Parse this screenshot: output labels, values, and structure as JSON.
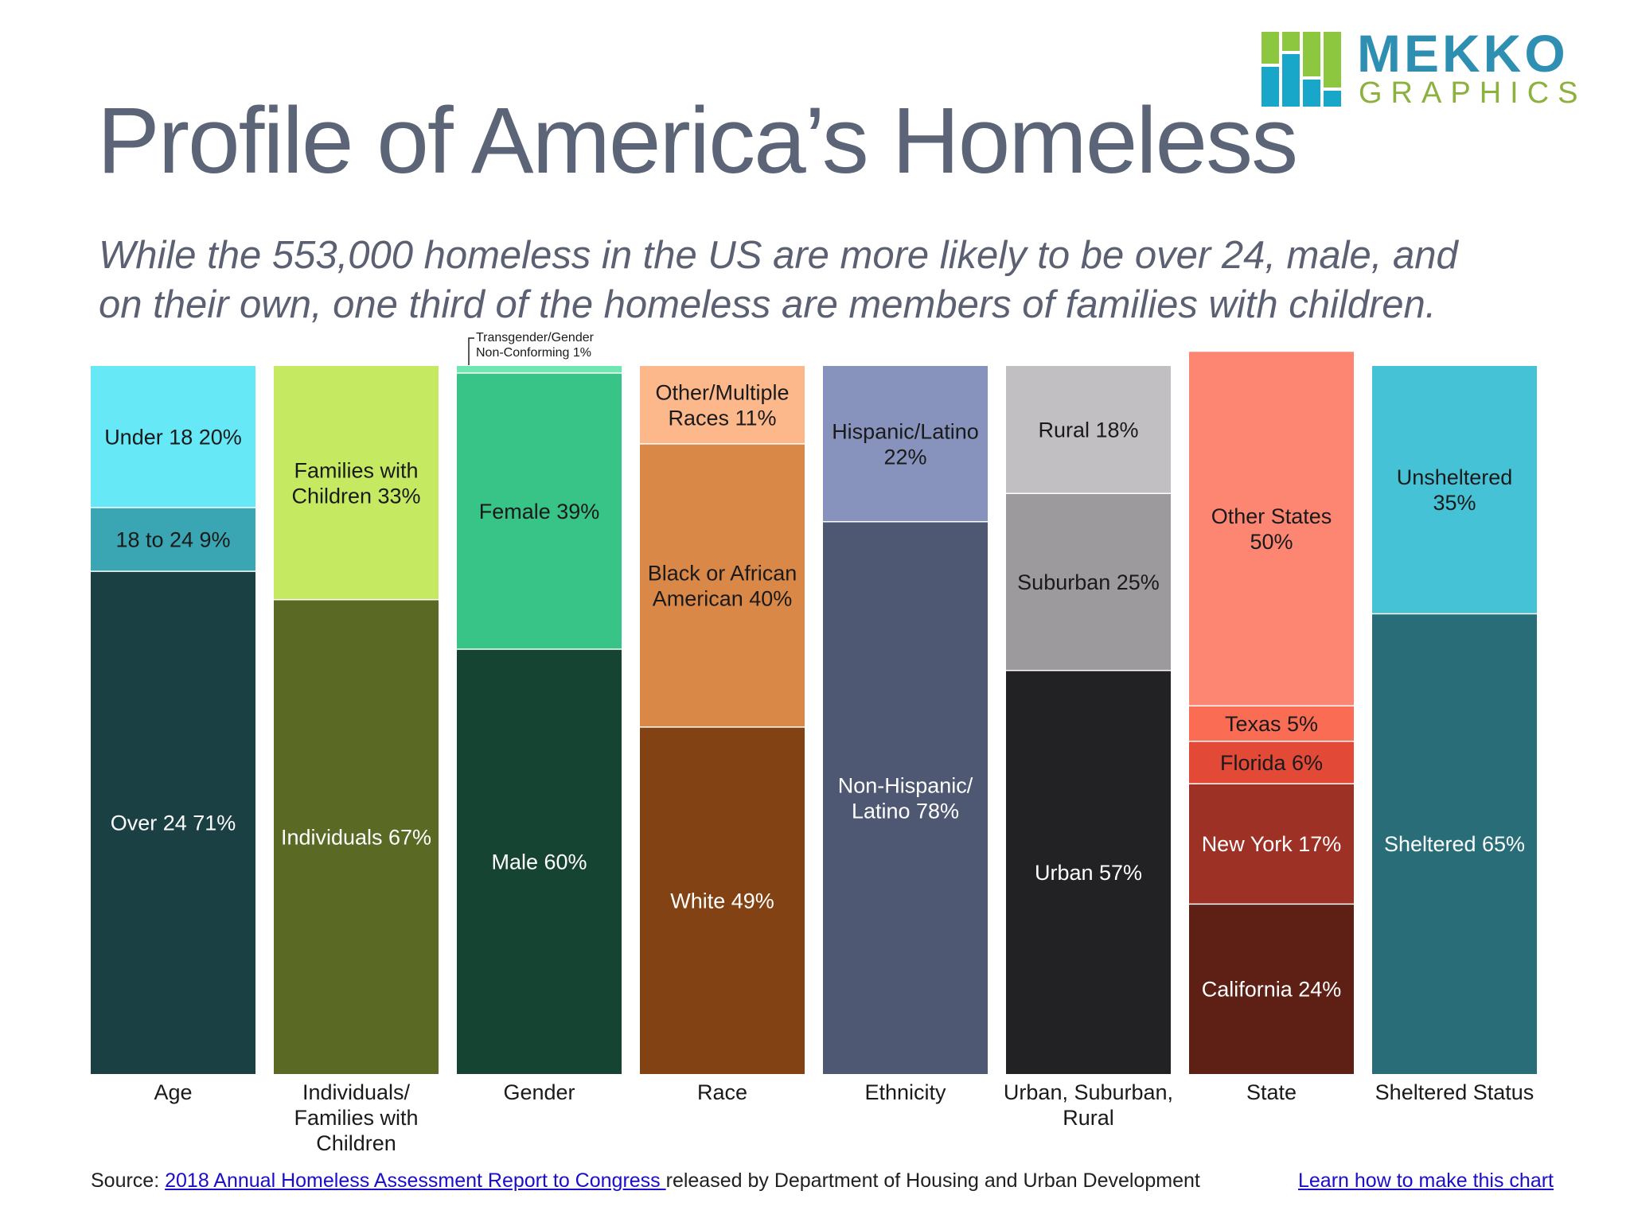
{
  "header": {
    "title": "Profile of America’s Homeless",
    "subtitle_line1": "While the 553,000 homeless in the US are more likely to be over 24, male, and",
    "subtitle_line2": "on their own, one third of the homeless are members of families with children."
  },
  "logo": {
    "word1": "MEKKO",
    "word2": "GRAPHICS",
    "colors": [
      "#19a7c9",
      "#8dc63f",
      "#2e8fb3"
    ]
  },
  "footer": {
    "source_prefix": "Source: ",
    "source_link": "2018 Annual Homeless Assessment Report to Congress ",
    "source_suffix": "released by Department of Housing and Urban Development",
    "learn_link": "Learn how to make this chart"
  },
  "chart_data": {
    "type": "bar",
    "stacked": true,
    "percent_stacked": true,
    "ylim": [
      0,
      100
    ],
    "grid": false,
    "categories": [
      [
        "Age"
      ],
      [
        "Individuals/",
        "Families with",
        "Children"
      ],
      [
        "Gender"
      ],
      [
        "Race"
      ],
      [
        "Ethnicity"
      ],
      [
        "Urban, Suburban,",
        "Rural"
      ],
      [
        "State"
      ],
      [
        "Sheltered Status"
      ]
    ],
    "columns": [
      {
        "segments": [
          {
            "label": [
              "Over 24 71%"
            ],
            "value": 71,
            "color": "#1a4044",
            "text": "light"
          },
          {
            "label": [
              "18 to 24 9%"
            ],
            "value": 9,
            "color": "#3ba6b3",
            "text": "dark"
          },
          {
            "label": [
              "Under 18 20%"
            ],
            "value": 20,
            "color": "#66e8f7",
            "text": "dark"
          }
        ]
      },
      {
        "segments": [
          {
            "label": [
              "Individuals 67%"
            ],
            "value": 67,
            "color": "#5a6a24",
            "text": "light"
          },
          {
            "label": [
              "Families with",
              "Children 33%"
            ],
            "value": 33,
            "color": "#c5ea62",
            "text": "dark"
          }
        ]
      },
      {
        "segments": [
          {
            "label": [
              "Male 60%"
            ],
            "value": 60,
            "color": "#154432",
            "text": "light"
          },
          {
            "label": [
              "Female 39%"
            ],
            "value": 39,
            "color": "#38c487",
            "text": "dark"
          },
          {
            "label": [
              "Transgender/Gender",
              "Non-Conforming 1%"
            ],
            "value": 1,
            "color": "#6ee8b0",
            "text": "callout"
          }
        ]
      },
      {
        "segments": [
          {
            "label": [
              "White 49%"
            ],
            "value": 49,
            "color": "#824214",
            "text": "light"
          },
          {
            "label": [
              "Black or African",
              "American 40%"
            ],
            "value": 40,
            "color": "#d98848",
            "text": "dark"
          },
          {
            "label": [
              "Other/Multiple",
              "Races 11%"
            ],
            "value": 11,
            "color": "#fcb88a",
            "text": "dark"
          }
        ]
      },
      {
        "segments": [
          {
            "label": [
              "Non-Hispanic/",
              "Latino 78%"
            ],
            "value": 78,
            "color": "#4f5873",
            "text": "light"
          },
          {
            "label": [
              "Hispanic/Latino",
              "22%"
            ],
            "value": 22,
            "color": "#8793bd",
            "text": "dark"
          }
        ]
      },
      {
        "segments": [
          {
            "label": [
              "Urban 57%"
            ],
            "value": 57,
            "color": "#222124",
            "text": "light"
          },
          {
            "label": [
              "Suburban 25%"
            ],
            "value": 25,
            "color": "#9c9a9d",
            "text": "dark"
          },
          {
            "label": [
              "Rural 18%"
            ],
            "value": 18,
            "color": "#c1bfc2",
            "text": "dark"
          }
        ]
      },
      {
        "segments": [
          {
            "label": [
              "California 24%"
            ],
            "value": 24,
            "color": "#5e1f15",
            "text": "light"
          },
          {
            "label": [
              "New York 17%"
            ],
            "value": 17,
            "color": "#9e3125",
            "text": "light"
          },
          {
            "label": [
              "Florida 6%"
            ],
            "value": 6,
            "color": "#e24a37",
            "text": "dark"
          },
          {
            "label": [
              "Texas 5%"
            ],
            "value": 5,
            "color": "#fb6c54",
            "text": "dark"
          },
          {
            "label": [
              "Other States",
              "50%"
            ],
            "value": 50,
            "color": "#fc8672",
            "text": "dark"
          }
        ]
      },
      {
        "segments": [
          {
            "label": [
              "Sheltered 65%"
            ],
            "value": 65,
            "color": "#286d78",
            "text": "light"
          },
          {
            "label": [
              "Unsheltered",
              "35%"
            ],
            "value": 35,
            "color": "#46c2d6",
            "text": "dark"
          }
        ]
      }
    ]
  }
}
